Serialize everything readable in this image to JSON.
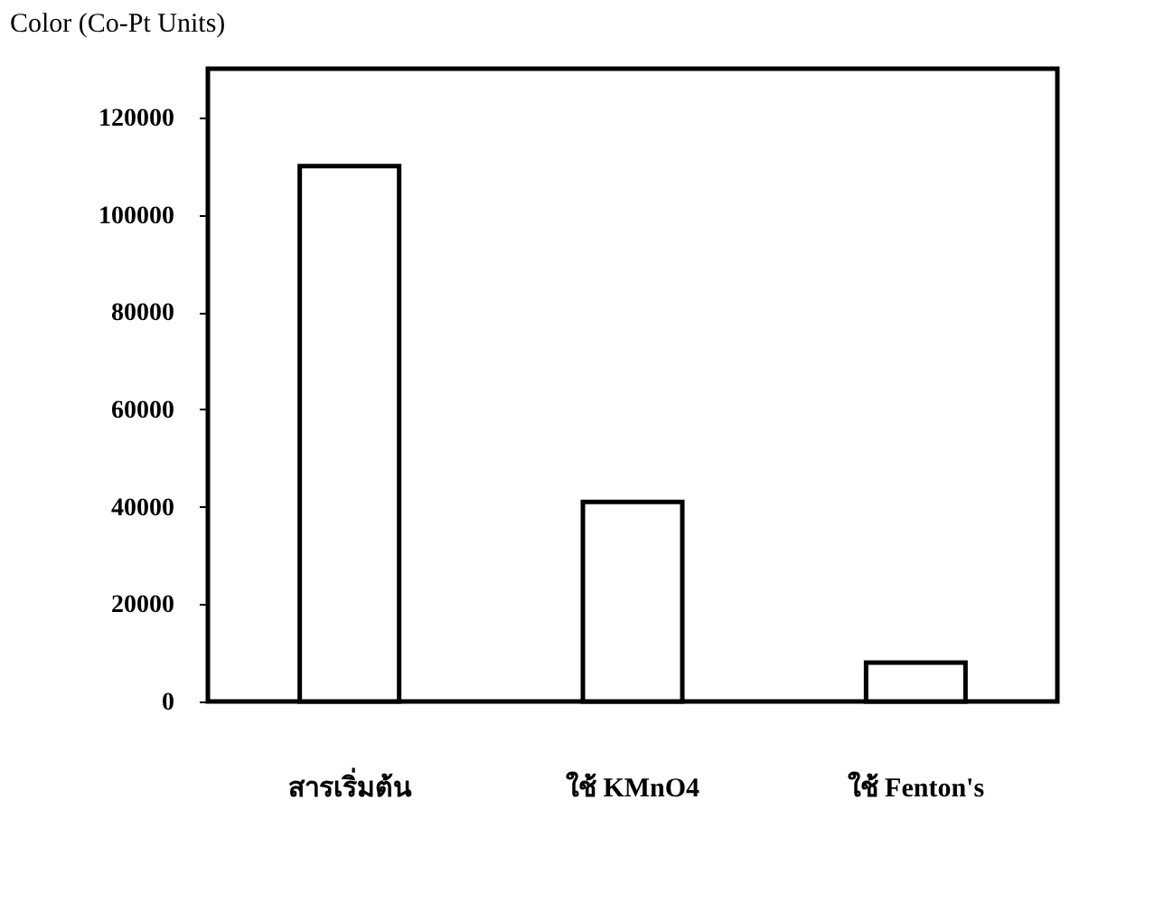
{
  "chart_data": {
    "type": "bar",
    "ylabel": "Color (Co-Pt Units)",
    "categories": [
      "สารเริ่มต้น",
      "ใช้ KMnO4",
      "ใช้ Fenton's"
    ],
    "values": [
      110000,
      41000,
      8000
    ],
    "color": "#ffffff",
    "ylim": [
      0,
      130000
    ],
    "yticks": [
      0,
      20000,
      40000,
      60000,
      80000,
      100000,
      120000
    ],
    "grid": false
  }
}
